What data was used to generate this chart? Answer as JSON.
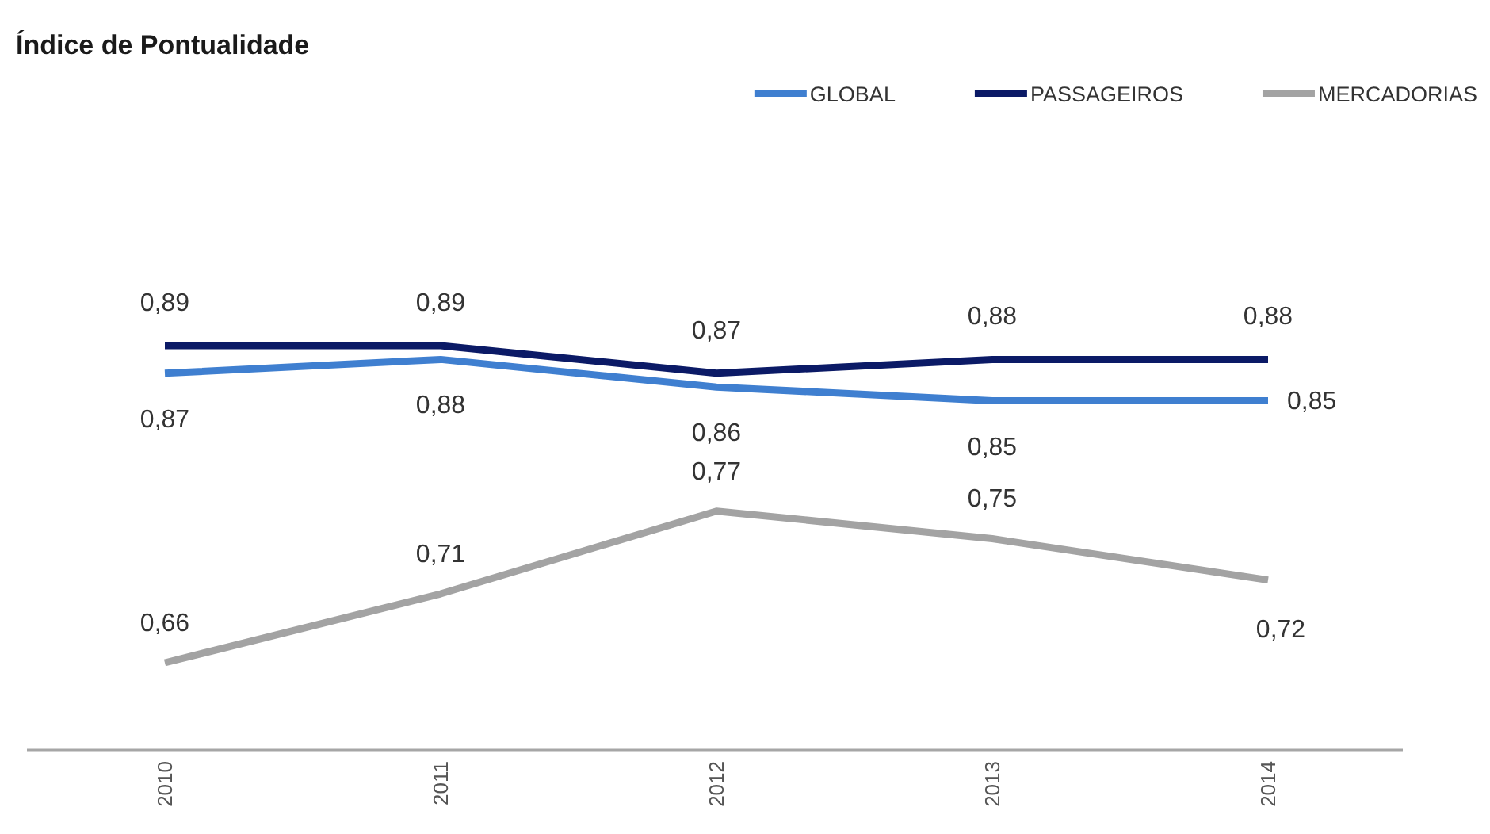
{
  "chart_data": {
    "type": "line",
    "title": "Índice de Pontualidade",
    "categories": [
      "2010",
      "2011",
      "2012",
      "2013",
      "2014"
    ],
    "series": [
      {
        "name": "GLOBAL",
        "color": "#3f7fd0",
        "values": [
          0.87,
          0.88,
          0.86,
          0.85,
          0.85
        ],
        "value_labels": [
          "0,87",
          "0,88",
          "0,86",
          "0,85",
          "0,85"
        ]
      },
      {
        "name": "PASSAGEIROS",
        "color": "#0b1a66",
        "values": [
          0.89,
          0.89,
          0.87,
          0.88,
          0.88
        ],
        "value_labels": [
          "0,89",
          "0,89",
          "0,87",
          "0,88",
          "0,88"
        ]
      },
      {
        "name": "MERCADORIAS",
        "color": "#a3a3a3",
        "values": [
          0.66,
          0.71,
          0.77,
          0.75,
          0.72
        ],
        "value_labels": [
          "0,66",
          "0,71",
          "0,77",
          "0,75",
          "0,72"
        ]
      }
    ],
    "legend": "top right",
    "line_style": "solid"
  }
}
